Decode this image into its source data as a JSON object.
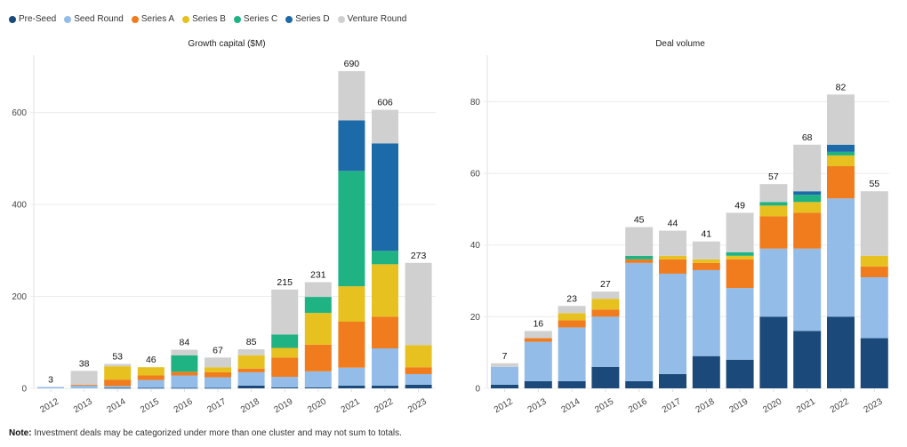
{
  "legend": [
    {
      "key": "preseed",
      "label": "Pre-Seed",
      "color": "#1b4a7a"
    },
    {
      "key": "seed",
      "label": "Seed Round",
      "color": "#93bde8"
    },
    {
      "key": "seriesA",
      "label": "Series A",
      "color": "#f07c1e"
    },
    {
      "key": "seriesB",
      "label": "Series B",
      "color": "#e6c11f"
    },
    {
      "key": "seriesC",
      "label": "Series C",
      "color": "#1fb384"
    },
    {
      "key": "seriesD",
      "label": "Series D",
      "color": "#1d6aa8"
    },
    {
      "key": "venture",
      "label": "Venture Round",
      "color": "#d0d0d0"
    }
  ],
  "note": {
    "bold": "Note:",
    "text": " Investment deals may be categorized under more than one cluster and may not sum to totals."
  },
  "chart_data": [
    {
      "type": "bar",
      "stacked": true,
      "title": "Growth capital ($M)",
      "xlabel": "",
      "ylabel": "",
      "ylim": [
        0,
        725
      ],
      "yticks": [
        0,
        200,
        400,
        600
      ],
      "grid": true,
      "legend_position": "top-left",
      "categories": [
        "2012",
        "2013",
        "2014",
        "2015",
        "2016",
        "2017",
        "2018",
        "2019",
        "2020",
        "2021",
        "2022",
        "2023"
      ],
      "totals": [
        3,
        38,
        53,
        46,
        84,
        67,
        85,
        215,
        231,
        690,
        606,
        273
      ],
      "series": [
        {
          "name": "Pre-Seed",
          "values": [
            0,
            0,
            1,
            1,
            1,
            1,
            6,
            2,
            2,
            6,
            6,
            8
          ]
        },
        {
          "name": "Seed Round",
          "values": [
            3,
            6,
            4,
            17,
            27,
            23,
            29,
            23,
            35,
            39,
            81,
            23
          ]
        },
        {
          "name": "Series A",
          "values": [
            0,
            2,
            14,
            10,
            8,
            11,
            8,
            42,
            58,
            100,
            69,
            15
          ]
        },
        {
          "name": "Series B",
          "values": [
            0,
            0,
            29,
            18,
            0,
            11,
            29,
            21,
            69,
            77,
            114,
            48
          ]
        },
        {
          "name": "Series C",
          "values": [
            0,
            0,
            0,
            0,
            36,
            0,
            0,
            29,
            35,
            251,
            29,
            0
          ]
        },
        {
          "name": "Series D",
          "values": [
            0,
            0,
            0,
            0,
            0,
            0,
            0,
            0,
            0,
            110,
            234,
            0
          ]
        },
        {
          "name": "Venture Round",
          "values": [
            0,
            30,
            5,
            0,
            12,
            21,
            13,
            98,
            32,
            107,
            73,
            179
          ]
        }
      ]
    },
    {
      "type": "bar",
      "stacked": true,
      "title": "Deal volume",
      "xlabel": "",
      "ylabel": "",
      "ylim": [
        0,
        93
      ],
      "yticks": [
        0,
        20,
        40,
        60,
        80
      ],
      "grid": true,
      "legend_position": "top-left",
      "categories": [
        "2012",
        "2013",
        "2014",
        "2015",
        "2016",
        "2017",
        "2018",
        "2019",
        "2020",
        "2021",
        "2022",
        "2023"
      ],
      "totals": [
        7,
        16,
        23,
        27,
        45,
        44,
        41,
        49,
        57,
        68,
        82,
        55
      ],
      "series": [
        {
          "name": "Pre-Seed",
          "values": [
            1,
            2,
            2,
            6,
            2,
            4,
            9,
            8,
            20,
            16,
            20,
            14
          ]
        },
        {
          "name": "Seed Round",
          "values": [
            5,
            11,
            15,
            14,
            33,
            28,
            24,
            20,
            19,
            23,
            33,
            17
          ]
        },
        {
          "name": "Series A",
          "values": [
            0,
            1,
            2,
            2,
            1,
            4,
            2,
            8,
            9,
            10,
            9,
            3
          ]
        },
        {
          "name": "Series B",
          "values": [
            0,
            0,
            2,
            3,
            0,
            1,
            1,
            1,
            3,
            3,
            3,
            3
          ]
        },
        {
          "name": "Series C",
          "values": [
            0,
            0,
            0,
            0,
            1,
            0,
            0,
            1,
            1,
            2,
            1,
            0
          ]
        },
        {
          "name": "Series D",
          "values": [
            0,
            0,
            0,
            0,
            0,
            0,
            0,
            0,
            0,
            1,
            2,
            0
          ]
        },
        {
          "name": "Venture Round",
          "values": [
            1,
            2,
            2,
            2,
            8,
            7,
            5,
            11,
            5,
            13,
            14,
            18
          ]
        }
      ]
    }
  ]
}
